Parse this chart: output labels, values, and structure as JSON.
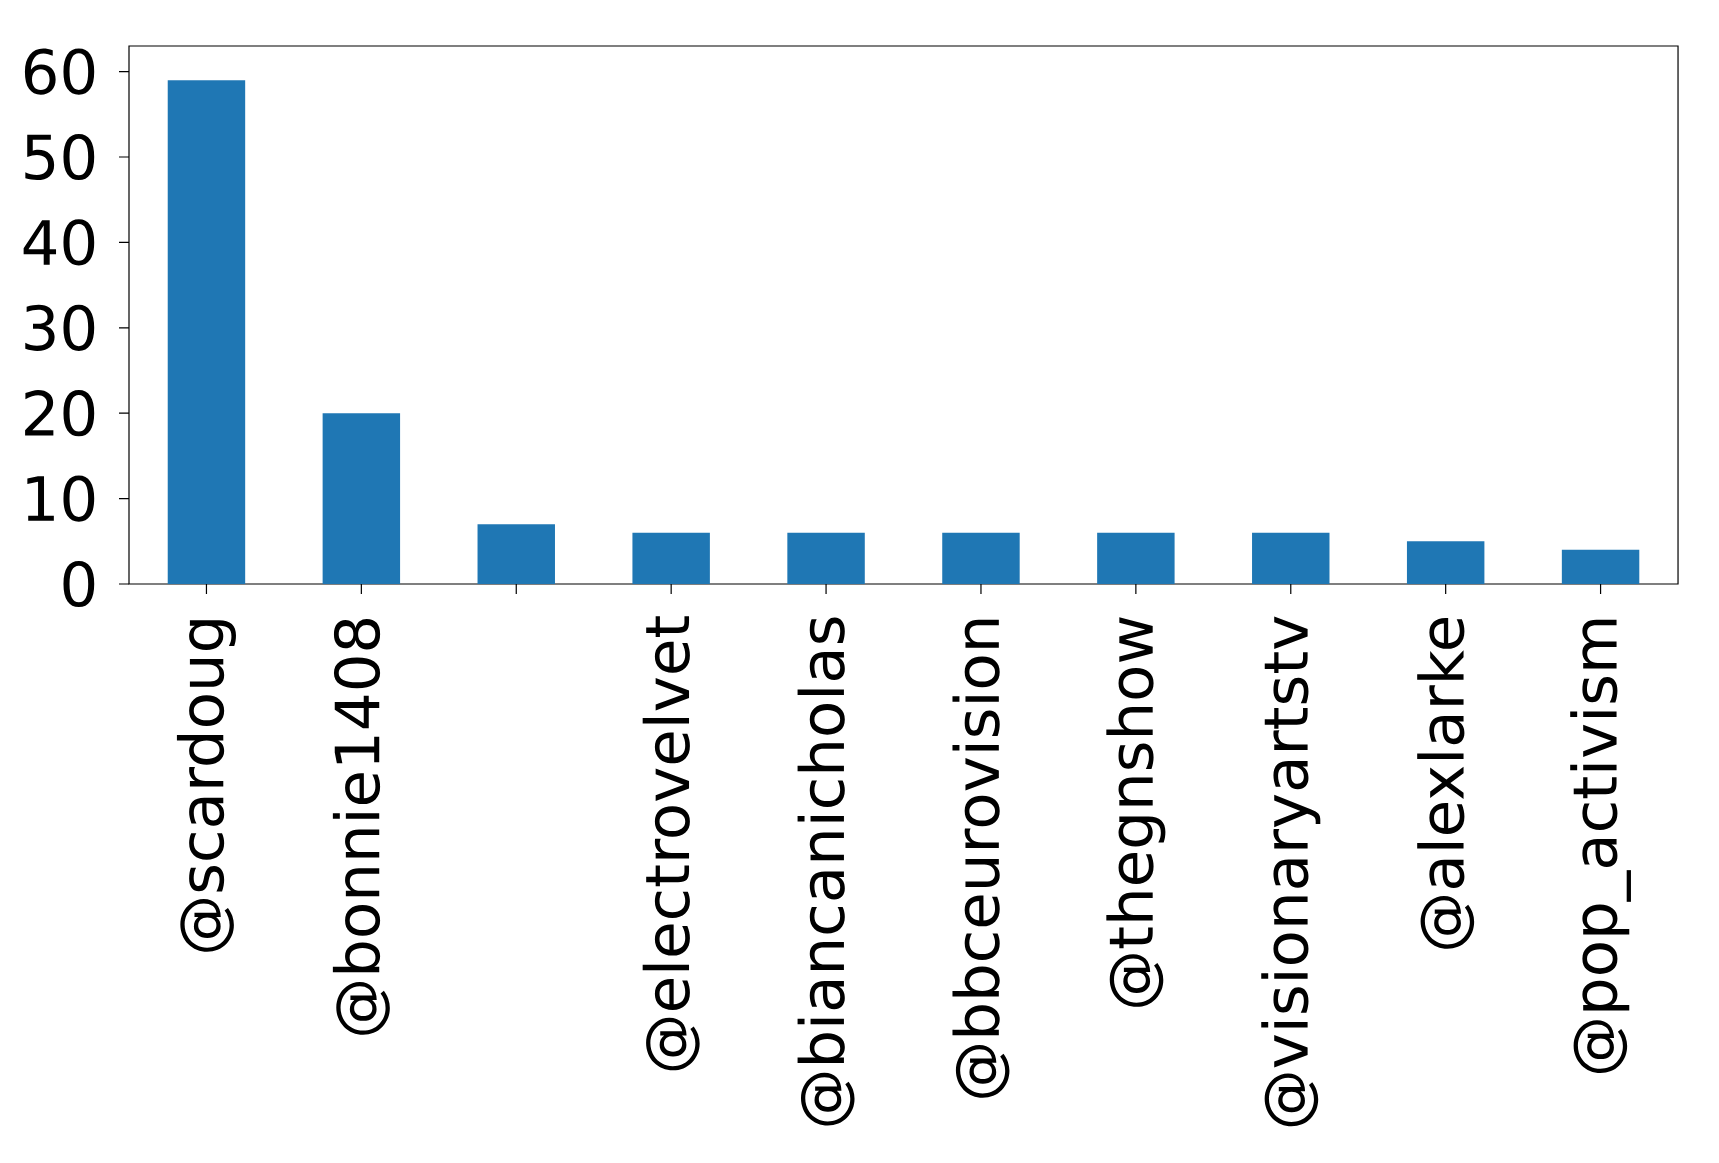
{
  "chart_data": {
    "type": "bar",
    "categories": [
      "@scardoug",
      "@bonnie1408",
      null,
      "@electrovelvet",
      "@biancanicholas",
      "@bbceurovision",
      "@thegnshow",
      "@visionaryartstv",
      "@alexlarke",
      "@pop_activism"
    ],
    "values": [
      59,
      20,
      7,
      6,
      6,
      6,
      6,
      6,
      5,
      4
    ],
    "color": "#1f77b4",
    "ylim": [
      0,
      63
    ],
    "yticks": [
      0,
      10,
      20,
      30,
      40,
      50,
      60
    ],
    "grid": false
  }
}
